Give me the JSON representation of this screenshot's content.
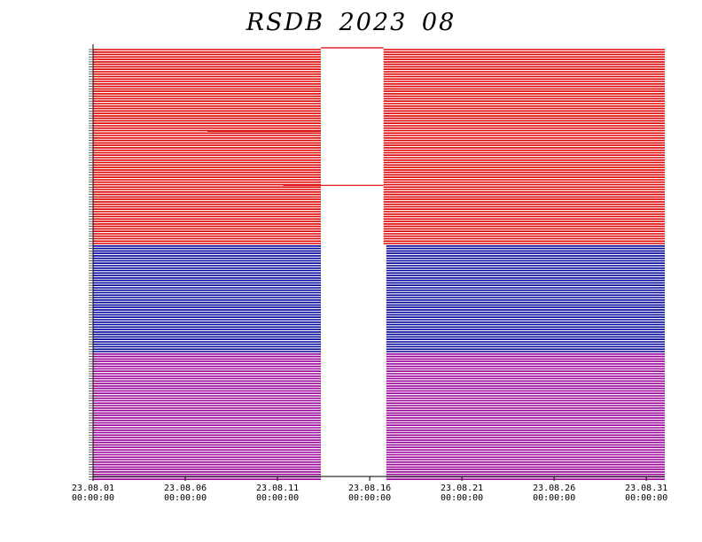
{
  "chart_data": {
    "type": "bar",
    "title": "RSDB  2023  08",
    "xlabel": "",
    "ylabel": "",
    "x_range": [
      "2023-08-01 00:00:00",
      "2023-09-01 00:00:00"
    ],
    "x_ticks": [
      {
        "date": "23.08.01",
        "time": "00:00:00",
        "day": 0
      },
      {
        "date": "23.08.06",
        "time": "00:00:00",
        "day": 5
      },
      {
        "date": "23.08.11",
        "time": "00:00:00",
        "day": 10
      },
      {
        "date": "23.08.16",
        "time": "00:00:00",
        "day": 15
      },
      {
        "date": "23.08.21",
        "time": "00:00:00",
        "day": 20
      },
      {
        "date": "23.08.26",
        "time": "00:00:00",
        "day": 25
      },
      {
        "date": "23.08.31",
        "time": "00:00:00",
        "day": 30
      }
    ],
    "grid": false,
    "legend": "none",
    "y_tick_labels_legible": false,
    "description_of_marks": "data availability timeline; one horizontal line per station, covered intervals drawn as line segments",
    "data_gap": {
      "start_day": 12.35,
      "end_day": 15.75
    },
    "series": [
      {
        "group": "red",
        "color": "#dd0000",
        "station_count": 80,
        "available_days": [
          [
            0,
            12.35
          ],
          [
            15.75,
            31
          ]
        ]
      },
      {
        "group": "blue",
        "color": "#000099",
        "station_count": 44,
        "available_days": [
          [
            0,
            12.35
          ],
          [
            15.9,
            31
          ]
        ]
      },
      {
        "group": "purple",
        "color": "#990099",
        "station_count": 52,
        "available_days": [
          [
            0,
            12.35
          ],
          [
            15.9,
            31
          ]
        ]
      }
    ],
    "partial_gap_lines": [
      {
        "group": "red",
        "from_day": 12.35,
        "to_day": 15.75
      },
      {
        "group": "red",
        "from_day": 6.2,
        "to_day": 12.35
      },
      {
        "group": "red",
        "from_day": 10.3,
        "to_day": 15.75
      }
    ]
  }
}
